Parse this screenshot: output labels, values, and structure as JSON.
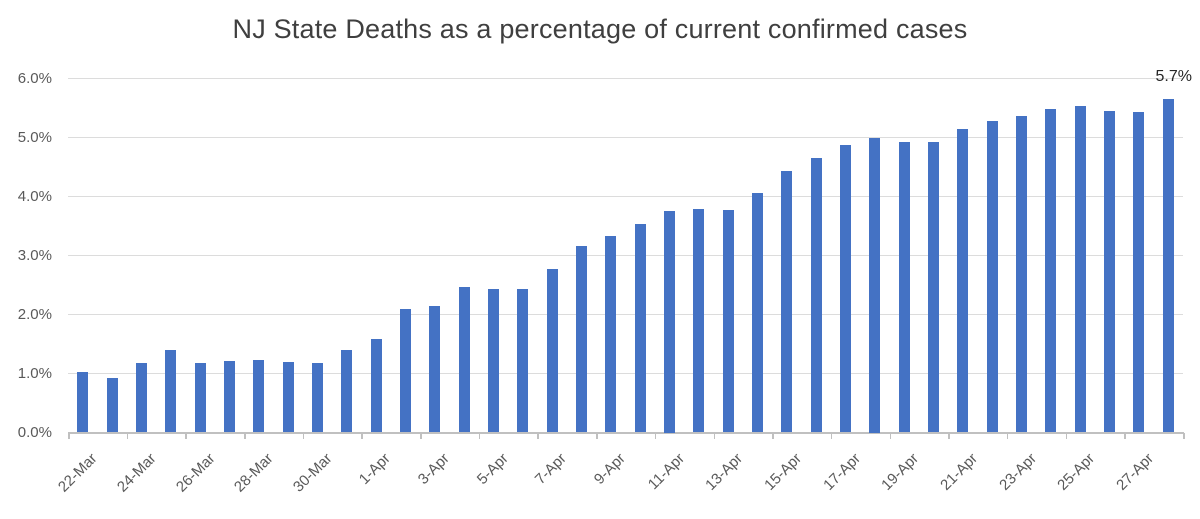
{
  "chart_data": {
    "type": "bar",
    "title": "NJ State Deaths as a percentage of current confirmed cases",
    "categories": [
      "22-Mar",
      "23-Mar",
      "24-Mar",
      "25-Mar",
      "26-Mar",
      "27-Mar",
      "28-Mar",
      "29-Mar",
      "30-Mar",
      "31-Mar",
      "1-Apr",
      "2-Apr",
      "3-Apr",
      "4-Apr",
      "5-Apr",
      "6-Apr",
      "7-Apr",
      "8-Apr",
      "9-Apr",
      "10-Apr",
      "11-Apr",
      "12-Apr",
      "13-Apr",
      "14-Apr",
      "15-Apr",
      "16-Apr",
      "17-Apr",
      "18-Apr",
      "19-Apr",
      "20-Apr",
      "21-Apr",
      "22-Apr",
      "23-Apr",
      "24-Apr",
      "25-Apr",
      "26-Apr",
      "27-Apr",
      "28-Apr"
    ],
    "values": [
      1.03,
      0.93,
      1.17,
      1.39,
      1.17,
      1.21,
      1.23,
      1.19,
      1.17,
      1.4,
      1.58,
      2.1,
      2.15,
      2.47,
      2.43,
      2.43,
      2.77,
      3.16,
      3.33,
      3.53,
      3.75,
      3.79,
      3.77,
      4.06,
      4.43,
      4.66,
      4.88,
      5.0,
      4.93,
      4.93,
      5.14,
      5.28,
      5.36,
      5.49,
      5.54,
      5.45,
      5.43,
      5.66
    ],
    "x_tick_labels": [
      "22-Mar",
      "24-Mar",
      "26-Mar",
      "28-Mar",
      "30-Mar",
      "1-Apr",
      "3-Apr",
      "5-Apr",
      "7-Apr",
      "9-Apr",
      "11-Apr",
      "13-Apr",
      "15-Apr",
      "17-Apr",
      "19-Apr",
      "21-Apr",
      "23-Apr",
      "25-Apr",
      "27-Apr"
    ],
    "x_label_interval": 2,
    "y_tick_labels": [
      "0.0%",
      "1.0%",
      "2.0%",
      "3.0%",
      "4.0%",
      "5.0%",
      "6.0%"
    ],
    "ylim": [
      0,
      6
    ],
    "xlabel": "",
    "ylabel": "",
    "grid": true,
    "legend": false,
    "annotation": {
      "text": "5.7%",
      "category": "28-Apr"
    },
    "bar_color": "#4472C4",
    "gridline_color": "#dcdcdc",
    "axis_color": "#c0c0c0",
    "tick_text_color": "#595959",
    "title_color": "#3f3f3f",
    "annotation_color": "#262626"
  }
}
